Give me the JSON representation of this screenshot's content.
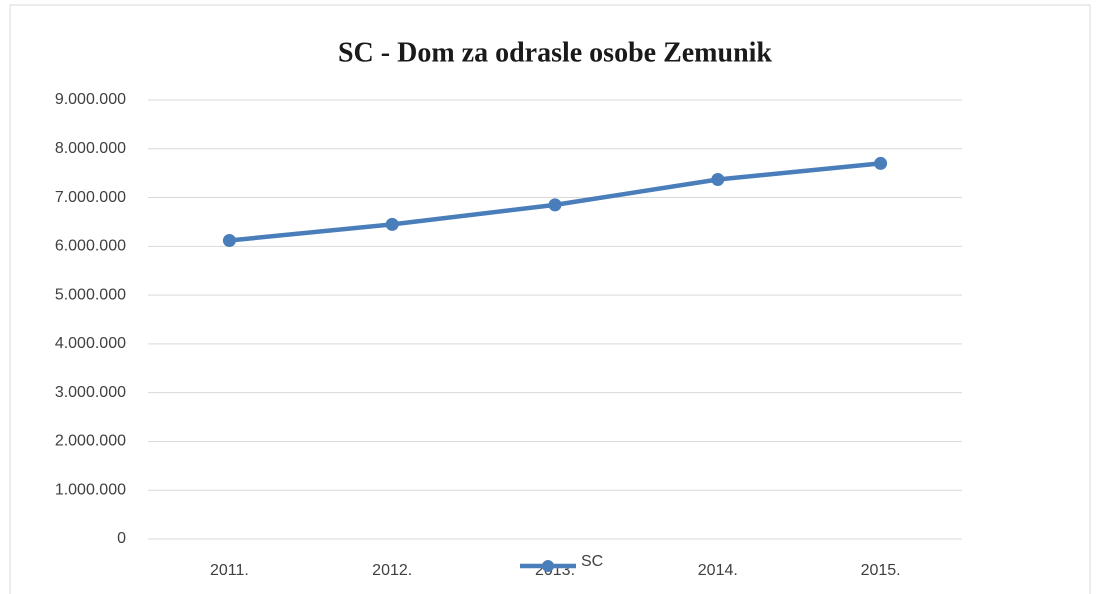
{
  "chart_data": {
    "type": "line",
    "title": "SC - Dom za odrasle osobe Zemunik",
    "categories": [
      "2011.",
      "2012.",
      "2013.",
      "2014.",
      "2015."
    ],
    "series": [
      {
        "name": "SC",
        "color": "#4a7ebb",
        "values": [
          6120000,
          6450000,
          6850000,
          7370000,
          7700000
        ]
      }
    ],
    "ylim": [
      0,
      9000000
    ],
    "yticks": [
      0,
      {
        "value": 1000000,
        "label": "1.000.000"
      },
      {
        "value": 2000000,
        "label": "2.000.000"
      },
      {
        "value": 3000000,
        "label": "3.000.000"
      },
      {
        "value": 4000000,
        "label": "4.000.000"
      },
      {
        "value": 5000000,
        "label": "5.000.000"
      },
      {
        "value": 6000000,
        "label": "6.000.000"
      },
      {
        "value": 7000000,
        "label": "7.000.000"
      },
      {
        "value": 8000000,
        "label": "8.000.000"
      },
      {
        "value": 9000000,
        "label": "9.000.000"
      }
    ],
    "grid": true,
    "legend": "bottom"
  }
}
